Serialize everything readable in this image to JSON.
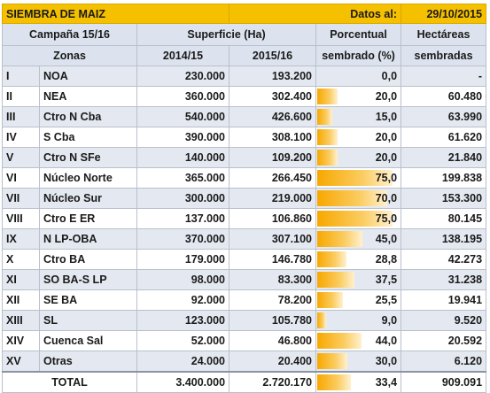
{
  "sheet": {
    "title": "SIEMBRA DE MAIZ",
    "date_label": "Datos al:",
    "date_value": "29/10/2015"
  },
  "headers": {
    "campaign": "Campaña 15/16",
    "surface": "Superficie (Ha)",
    "percent_line1": "Porcentual",
    "percent_line2": "sembrado (%)",
    "hectares_line1": "Hectáreas",
    "hectares_line2": "sembradas",
    "zones": "Zonas",
    "year1": "2014/15",
    "year2": "2015/16"
  },
  "rows": [
    {
      "id": "I",
      "zone": "NOA",
      "s2014": "230.000",
      "s2015": "193.200",
      "pct": "0,0",
      "pct_value": 0.0,
      "ha": "-"
    },
    {
      "id": "II",
      "zone": "NEA",
      "s2014": "360.000",
      "s2015": "302.400",
      "pct": "20,0",
      "pct_value": 20.0,
      "ha": "60.480"
    },
    {
      "id": "III",
      "zone": "Ctro N Cba",
      "s2014": "540.000",
      "s2015": "426.600",
      "pct": "15,0",
      "pct_value": 15.0,
      "ha": "63.990"
    },
    {
      "id": "IV",
      "zone": "S Cba",
      "s2014": "390.000",
      "s2015": "308.100",
      "pct": "20,0",
      "pct_value": 20.0,
      "ha": "61.620"
    },
    {
      "id": "V",
      "zone": "Ctro N SFe",
      "s2014": "140.000",
      "s2015": "109.200",
      "pct": "20,0",
      "pct_value": 20.0,
      "ha": "21.840"
    },
    {
      "id": "VI",
      "zone": "Núcleo Norte",
      "s2014": "365.000",
      "s2015": "266.450",
      "pct": "75,0",
      "pct_value": 75.0,
      "ha": "199.838"
    },
    {
      "id": "VII",
      "zone": "Núcleo Sur",
      "s2014": "300.000",
      "s2015": "219.000",
      "pct": "70,0",
      "pct_value": 70.0,
      "ha": "153.300"
    },
    {
      "id": "VIII",
      "zone": "Ctro E ER",
      "s2014": "137.000",
      "s2015": "106.860",
      "pct": "75,0",
      "pct_value": 75.0,
      "ha": "80.145"
    },
    {
      "id": "IX",
      "zone": "N LP-OBA",
      "s2014": "370.000",
      "s2015": "307.100",
      "pct": "45,0",
      "pct_value": 45.0,
      "ha": "138.195"
    },
    {
      "id": "X",
      "zone": "Ctro BA",
      "s2014": "179.000",
      "s2015": "146.780",
      "pct": "28,8",
      "pct_value": 28.8,
      "ha": "42.273"
    },
    {
      "id": "XI",
      "zone": "SO BA-S LP",
      "s2014": "98.000",
      "s2015": "83.300",
      "pct": "37,5",
      "pct_value": 37.5,
      "ha": "31.238"
    },
    {
      "id": "XII",
      "zone": "SE BA",
      "s2014": "92.000",
      "s2015": "78.200",
      "pct": "25,5",
      "pct_value": 25.5,
      "ha": "19.941"
    },
    {
      "id": "XIII",
      "zone": "SL",
      "s2014": "123.000",
      "s2015": "105.780",
      "pct": "9,0",
      "pct_value": 9.0,
      "ha": "9.520"
    },
    {
      "id": "XIV",
      "zone": "Cuenca Sal",
      "s2014": "52.000",
      "s2015": "46.800",
      "pct": "44,0",
      "pct_value": 44.0,
      "ha": "20.592"
    },
    {
      "id": "XV",
      "zone": "Otras",
      "s2014": "24.000",
      "s2015": "20.400",
      "pct": "30,0",
      "pct_value": 30.0,
      "ha": "6.120"
    }
  ],
  "total": {
    "label": "TOTAL",
    "s2014": "3.400.000",
    "s2015": "2.720.170",
    "pct": "33,4",
    "pct_value": 33.4,
    "ha": "909.091"
  },
  "colors": {
    "title_bg": "#f5c000",
    "header_bg": "#dce3ee",
    "alt_row_bg": "#e4e9f1",
    "bar_color": "#f7a800"
  }
}
